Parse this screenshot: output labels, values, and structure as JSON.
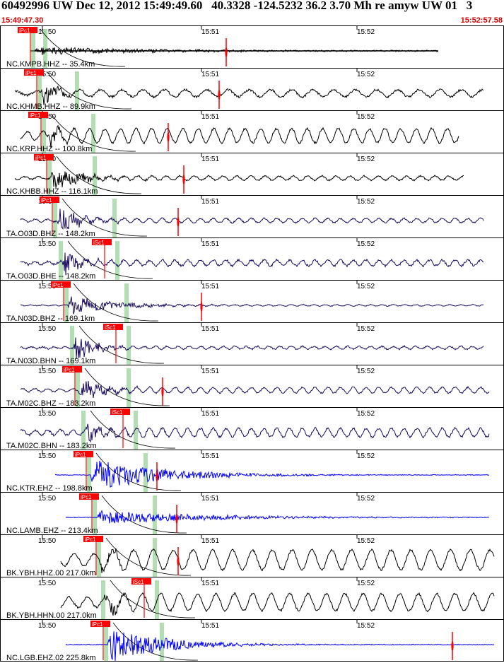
{
  "header": {
    "title": "60492996 UW Dec 12, 2012 15:49:49.60   40.3328 -124.5232 36.2 3.70 Mh re amyw UW 01   3",
    "start_time": "15:49:47.30",
    "end_time": "15:52:57.58"
  },
  "time_ticks": [
    "15:50",
    "15:51",
    "15:52"
  ],
  "colors": {
    "black": "#000000",
    "navy": "#1a0a5e",
    "blue": "#0000ff",
    "pick_red": "#ff0000",
    "green_band": "#a8dca8"
  },
  "pick_labels": {
    "p": "iPc1",
    "s": "iSc1"
  },
  "panels": [
    {
      "label": "NC.KMPB.HHZ -- 35.4km",
      "pick": "p",
      "color": "black",
      "amp": 2,
      "noise": 2,
      "period": 0,
      "burst": 6,
      "tail": 0.02,
      "start": 0.06,
      "end": 0.87,
      "flat": true
    },
    {
      "label": "NC.KHMB.HHZ -- 89.9km",
      "pick": "p",
      "color": "black",
      "amp": 5,
      "noise": 3,
      "period": 30,
      "burst": 20,
      "tail": 0.15,
      "start": 0.03,
      "end": 0.96
    },
    {
      "label": "NC.KRP.HHZ -- 100.8km",
      "pick": "p",
      "color": "black",
      "amp": 10,
      "noise": 3,
      "period": 22,
      "burst": 22,
      "tail": 0.2,
      "start": 0.04,
      "end": 0.91
    },
    {
      "label": "NC.KHBB.HHZ -- 116.1km",
      "pick": "p",
      "color": "black",
      "amp": 3,
      "noise": 2,
      "period": 20,
      "burst": 20,
      "tail": 0.08,
      "start": 0.03,
      "end": 0.92
    },
    {
      "label": "TA.O03D.BHZ -- 148.2km",
      "pick": "p",
      "color": "navy",
      "amp": 3,
      "noise": 2,
      "period": 18,
      "burst": 20,
      "tail": 0.1,
      "start": 0.04,
      "end": 0.96
    },
    {
      "label": "TA.O03D.BHE -- 148.2km",
      "pick": "s",
      "color": "navy",
      "amp": 4,
      "noise": 3,
      "period": 18,
      "burst": 20,
      "tail": 0.15,
      "start": 0.04,
      "end": 0.96
    },
    {
      "label": "TA.N03D.BHZ -- 169.1km",
      "pick": "p",
      "color": "navy",
      "amp": 1,
      "noise": 1,
      "period": 16,
      "burst": 15,
      "tail": 0.05,
      "start": 0.04,
      "end": 0.96
    },
    {
      "label": "TA.N03D.BHN -- 169.1km",
      "pick": "s",
      "color": "navy",
      "amp": 2,
      "noise": 2,
      "period": 16,
      "burst": 22,
      "tail": 0.12,
      "start": 0.04,
      "end": 0.96
    },
    {
      "label": "TA.M02C.BHZ -- 183.2km",
      "pick": "p",
      "color": "navy",
      "amp": 4,
      "noise": 2,
      "period": 18,
      "burst": 18,
      "tail": 0.1,
      "start": 0.04,
      "end": 0.97
    },
    {
      "label": "TA.M02C.BHN -- 183.2km",
      "pick": "s",
      "color": "navy",
      "amp": 6,
      "noise": 3,
      "period": 18,
      "burst": 20,
      "tail": 0.15,
      "start": 0.04,
      "end": 0.97
    },
    {
      "label": "NC.KTR.EHZ -- 198.8km",
      "pick": "p",
      "color": "blue",
      "amp": 0,
      "noise": 1,
      "period": 0,
      "burst": 24,
      "tail": 0.03,
      "start": 0.11,
      "end": 0.97
    },
    {
      "label": "NC.LAMB.EHZ -- 213.4km",
      "pick": "p",
      "color": "blue",
      "amp": 0,
      "noise": 1,
      "period": 0,
      "burst": 10,
      "tail": 0.02,
      "start": 0.13,
      "end": 0.97
    },
    {
      "label": "BK.YBH.HHZ.00 217.0km",
      "pick": "p",
      "color": "black",
      "amp": 14,
      "noise": 3,
      "period": 28,
      "burst": 22,
      "tail": 0.2,
      "start": 0.12,
      "end": 0.98
    },
    {
      "label": "BK.YBH.HHN.00 217.0km",
      "pick": "s",
      "color": "black",
      "amp": 12,
      "noise": 3,
      "period": 26,
      "burst": 22,
      "tail": 0.2,
      "start": 0.12,
      "end": 0.98
    },
    {
      "label": "NC.LGB.EHZ.02 225.8km",
      "pick": "p",
      "color": "blue",
      "amp": 0,
      "noise": 1,
      "period": 0,
      "burst": 28,
      "tail": 0.04,
      "start": 0.13,
      "end": 0.98
    }
  ]
}
